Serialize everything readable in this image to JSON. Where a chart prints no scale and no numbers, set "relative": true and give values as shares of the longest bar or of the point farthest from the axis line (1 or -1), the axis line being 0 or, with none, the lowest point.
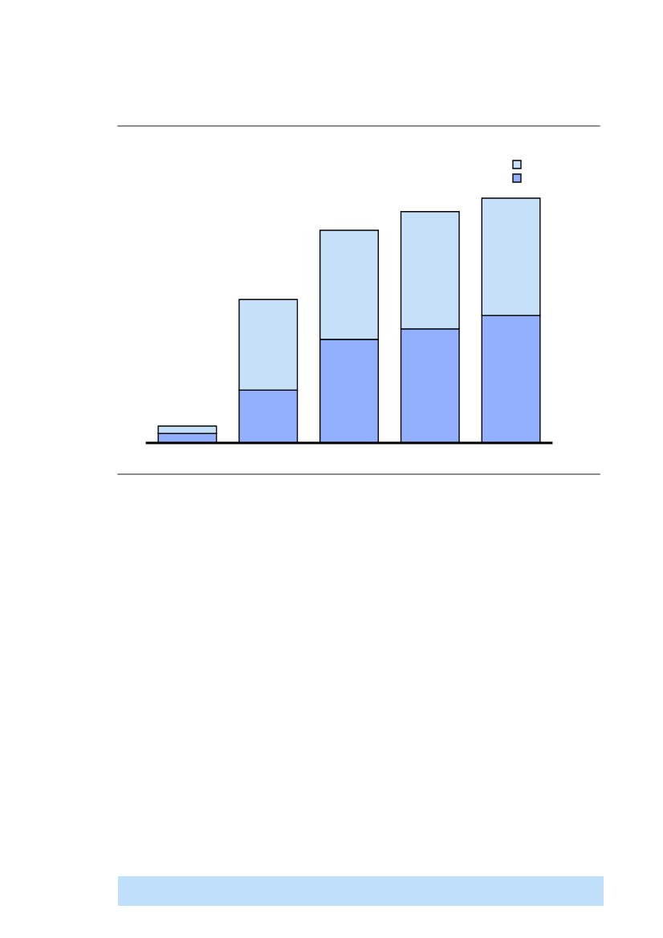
{
  "chart_data": {
    "type": "bar",
    "relative": true,
    "stacked": true,
    "categories": [
      null,
      null,
      null,
      null,
      null
    ],
    "series": [
      {
        "color": "#92b0fe",
        "values": [
          0.039,
          0.216,
          0.423,
          0.466,
          0.521
        ]
      },
      {
        "color": "#c6e0fa",
        "values": [
          0.03,
          0.37,
          0.446,
          0.479,
          0.479
        ]
      }
    ]
  }
}
